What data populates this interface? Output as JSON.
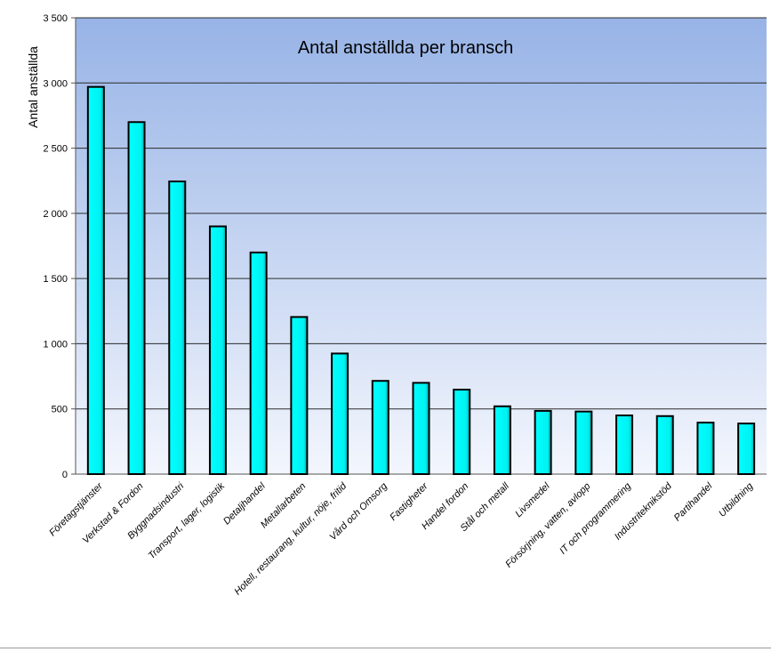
{
  "chart_data": {
    "type": "bar",
    "title": "Antal anställda per bransch",
    "xlabel": "",
    "ylabel": "Antal anställda",
    "ylim": [
      0,
      3500
    ],
    "yticks": [
      0,
      500,
      1000,
      1500,
      2000,
      2500,
      3000,
      3500
    ],
    "ytick_labels": [
      "0",
      "500",
      "1 000",
      "1 500",
      "2 000",
      "2 500",
      "3 000",
      "3 500"
    ],
    "grid": true,
    "legend": "none",
    "categories": [
      "Företagstjänster",
      "Verkstad & Fordon",
      "Byggnadsindustri",
      "Transport, lager, logistik",
      "Detaljhandel",
      "Metallarbeten",
      "Hotell, restaurang, kultur, nöje, fritid",
      "Vård och Omsorg",
      "Fastigheter",
      "Handel fordon",
      "Stål och metall",
      "Livsmedel",
      "Försörjning, vatten, avlopp",
      "IT och programmering",
      "Industriteknikstöd",
      "Partihandel",
      "Utbildning"
    ],
    "values": [
      2970,
      2700,
      2245,
      1900,
      1700,
      1205,
      925,
      715,
      700,
      648,
      520,
      485,
      480,
      450,
      445,
      395,
      388
    ],
    "colors": {
      "bar_fill": "#00ffff",
      "bar_shadow": "#00a8a8",
      "bar_outline": "#000000",
      "plot_top": "#97b3e6",
      "plot_bottom": "#f3f6fd",
      "gridline": "#2b2b2b"
    }
  }
}
